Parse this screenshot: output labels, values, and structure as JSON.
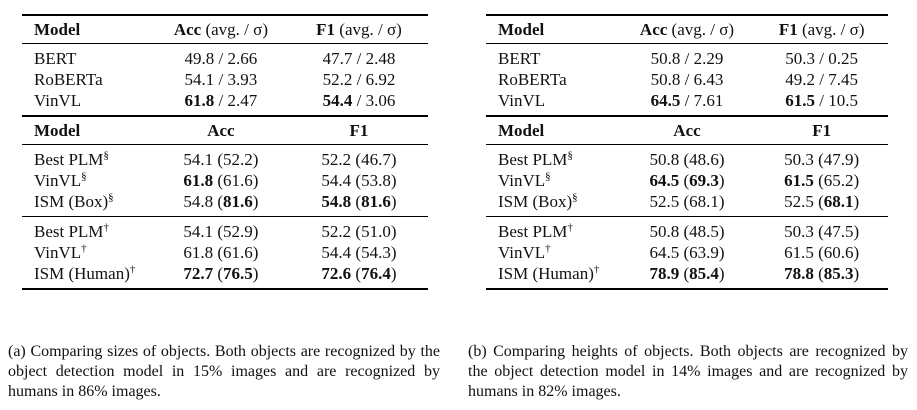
{
  "tables": [
    {
      "caption": "(a) Comparing sizes of objects. Both objects are recognized by the object detection model in 15% images and are recognized by humans in 86% images.",
      "header1": {
        "model": "Model",
        "acc_bold": "Acc",
        "acc_rest": " (avg. / σ)",
        "f1_bold": "F1",
        "f1_rest": " (avg. / σ)"
      },
      "group1": [
        {
          "model": "BERT",
          "acc_main": "49.8",
          "acc_rest": " / 2.66",
          "f1_main": "47.7",
          "f1_rest": " / 2.48"
        },
        {
          "model": "RoBERTa",
          "acc_main": "54.1",
          "acc_rest": " / 3.93",
          "f1_main": "52.2",
          "f1_rest": " / 6.92"
        },
        {
          "model": "VinVL",
          "acc_main": "61.8",
          "acc_rest": " / 2.47",
          "f1_main": "54.4",
          "f1_rest": " / 3.06"
        }
      ],
      "header2": {
        "model": "Model",
        "acc": "Acc",
        "f1": "F1"
      },
      "group2": [
        {
          "model": "Best PLM",
          "sup": "§",
          "acc_main": "54.1",
          "acc_sub": "52.2",
          "f1_main": "52.2",
          "f1_sub": "46.7"
        },
        {
          "model": "VinVL",
          "sup": "§",
          "acc_main": "61.8",
          "acc_sub": "61.6",
          "f1_main": "54.4",
          "f1_sub": "53.8"
        },
        {
          "model": "ISM (Box)",
          "sup": "§",
          "acc_main": "54.8",
          "acc_sub": "81.6",
          "f1_main": "54.8",
          "f1_sub": "81.6"
        }
      ],
      "group3": [
        {
          "model": "Best PLM",
          "sup": "†",
          "acc_main": "54.1",
          "acc_sub": "52.9",
          "f1_main": "52.2",
          "f1_sub": "51.0"
        },
        {
          "model": "VinVL",
          "sup": "†",
          "acc_main": "61.8",
          "acc_sub": "61.6",
          "f1_main": "54.4",
          "f1_sub": "54.3"
        },
        {
          "model": "ISM (Human)",
          "sup": "†",
          "acc_main": "72.7",
          "acc_sub": "76.5",
          "f1_main": "72.6",
          "f1_sub": "76.4"
        }
      ]
    },
    {
      "caption": "(b) Comparing heights of objects. Both objects are recognized by the object detection model in 14% images and are recognized by humans in 82% images.",
      "header1": {
        "model": "Model",
        "acc_bold": "Acc",
        "acc_rest": " (avg. / σ)",
        "f1_bold": "F1",
        "f1_rest": " (avg. / σ)"
      },
      "group1": [
        {
          "model": "BERT",
          "acc_main": "50.8",
          "acc_rest": " / 2.29",
          "f1_main": "50.3",
          "f1_rest": " / 0.25"
        },
        {
          "model": "RoBERTa",
          "acc_main": "50.8",
          "acc_rest": " / 6.43",
          "f1_main": "49.2",
          "f1_rest": " / 7.45"
        },
        {
          "model": "VinVL",
          "acc_main": "64.5",
          "acc_rest": " / 7.61",
          "f1_main": "61.5",
          "f1_rest": " / 10.5"
        }
      ],
      "header2": {
        "model": "Model",
        "acc": "Acc",
        "f1": "F1"
      },
      "group2": [
        {
          "model": "Best PLM",
          "sup": "§",
          "acc_main": "50.8",
          "acc_sub": "48.6",
          "f1_main": "50.3",
          "f1_sub": "47.9"
        },
        {
          "model": "VinVL",
          "sup": "§",
          "acc_main": "64.5",
          "acc_sub": "69.3",
          "f1_main": "61.5",
          "f1_sub": "65.2"
        },
        {
          "model": "ISM (Box)",
          "sup": "§",
          "acc_main": "52.5",
          "acc_sub": "68.1",
          "f1_main": "52.5",
          "f1_sub": "68.1"
        }
      ],
      "group3": [
        {
          "model": "Best PLM",
          "sup": "†",
          "acc_main": "50.8",
          "acc_sub": "48.5",
          "f1_main": "50.3",
          "f1_sub": "47.5"
        },
        {
          "model": "VinVL",
          "sup": "†",
          "acc_main": "64.5",
          "acc_sub": "63.9",
          "f1_main": "61.5",
          "f1_sub": "60.6"
        },
        {
          "model": "ISM (Human)",
          "sup": "†",
          "acc_main": "78.9",
          "acc_sub": "85.4",
          "f1_main": "78.8",
          "f1_sub": "85.3"
        }
      ]
    }
  ]
}
